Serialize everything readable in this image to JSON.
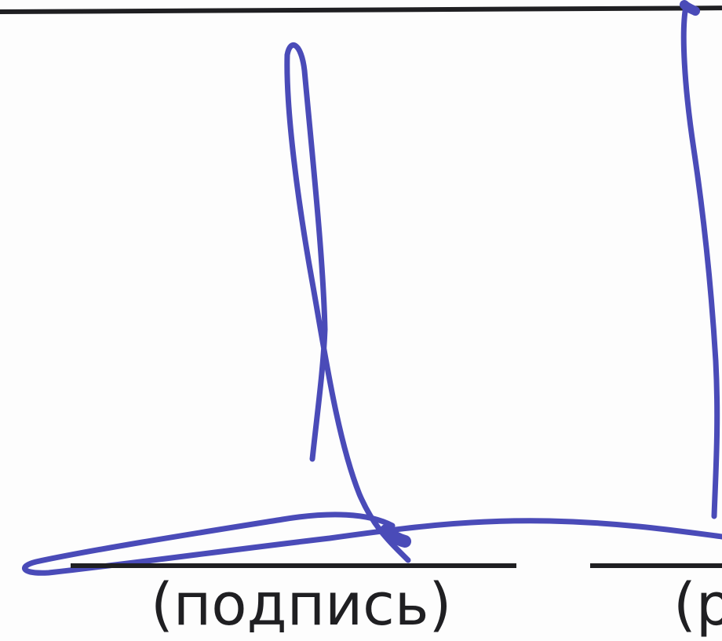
{
  "captions": {
    "left": "(подпись)",
    "right": "(р"
  },
  "colors": {
    "ink": "#4a4bb8",
    "rule": "#1f1f22",
    "paper": "#fdfdfd"
  },
  "signature": {
    "kind": "handwritten-signature"
  }
}
